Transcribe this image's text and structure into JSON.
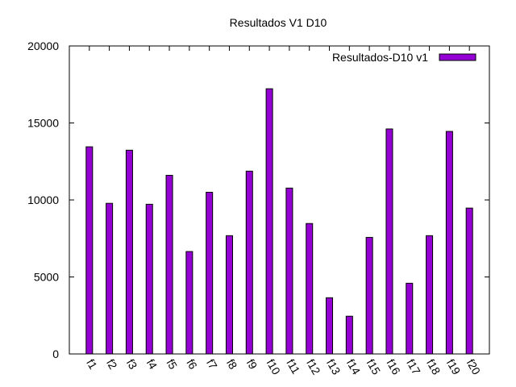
{
  "chart_data": {
    "type": "bar",
    "title": "Resultados V1 D10",
    "xlabel": "",
    "ylabel": "",
    "categories": [
      "f1",
      "f2",
      "f3",
      "f4",
      "f5",
      "f6",
      "f7",
      "f8",
      "f9",
      "f10",
      "f11",
      "f12",
      "f13",
      "f14",
      "f15",
      "f16",
      "f17",
      "f18",
      "f19",
      "f20"
    ],
    "series": [
      {
        "name": "Resultados-D10 v1",
        "color": "#9400d3",
        "values": [
          13450,
          9780,
          13230,
          9720,
          11600,
          6650,
          10500,
          7680,
          11870,
          17220,
          10770,
          8470,
          3650,
          2450,
          7570,
          14610,
          4590,
          7680,
          14450,
          9470
        ]
      }
    ],
    "ylim": [
      0,
      20000
    ],
    "yticks": [
      0,
      5000,
      10000,
      15000,
      20000
    ],
    "legend_position": "top-right",
    "grid": false
  }
}
